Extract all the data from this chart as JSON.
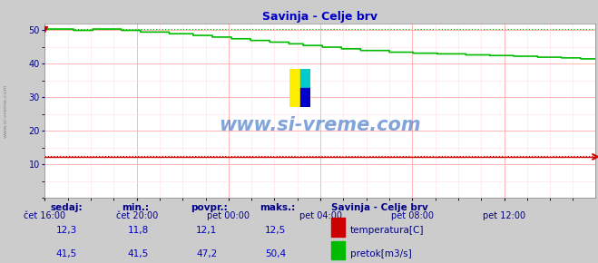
{
  "title": "Savinja - Celje brv",
  "title_color": "#0000cc",
  "bg_color": "#cccccc",
  "plot_bg_color": "#ffffff",
  "grid_color_major": "#ffaaaa",
  "grid_color_minor": "#ffdddd",
  "watermark": "www.si-vreme.com",
  "watermark_color": "#1a5abf",
  "xlabels": [
    "čet 16:00",
    "čet 20:00",
    "pet 00:00",
    "pet 04:00",
    "pet 08:00",
    "pet 12:00"
  ],
  "xtick_positions": [
    0,
    96,
    192,
    288,
    384,
    480
  ],
  "total_points": 576,
  "ylim": [
    0,
    52
  ],
  "yticks": [
    10,
    20,
    30,
    40,
    50
  ],
  "temp_value": 12.3,
  "temp_min": 11.8,
  "temp_avg": 12.1,
  "temp_max": 12.5,
  "flow_value": 41.5,
  "flow_min": 41.5,
  "flow_avg": 47.2,
  "flow_max": 50.4,
  "temp_color": "#cc0000",
  "flow_color": "#00bb00",
  "legend_title": "Savinja - Celje brv",
  "legend_title_color": "#000088",
  "legend_label_color": "#000088",
  "table_header_color": "#000088",
  "table_value_color": "#0000cc",
  "sidebar_text": "www.si-vreme.com",
  "sidebar_color": "#777777"
}
